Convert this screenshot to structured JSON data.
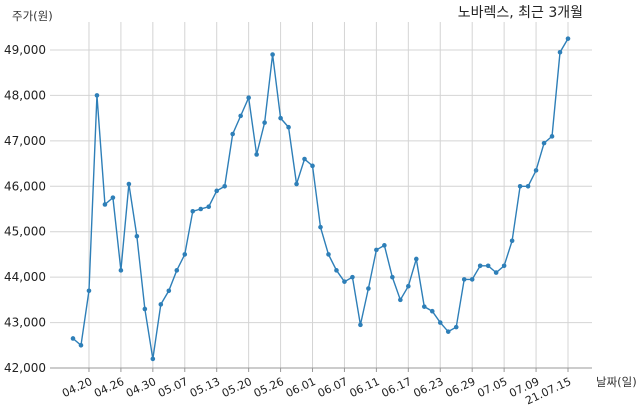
{
  "chart_data": {
    "type": "line",
    "title": "노바렉스, 최근 3개월",
    "ylabel": "주가(원)",
    "xlabel": "날짜(일)",
    "ylim": [
      42000,
      49500
    ],
    "yticks": [
      "42,000",
      "43,000",
      "44,000",
      "45,000",
      "46,000",
      "47,000",
      "48,000",
      "49,000"
    ],
    "ytick_values": [
      42000,
      43000,
      44000,
      45000,
      46000,
      47000,
      48000,
      49000
    ],
    "xtick_labels": [
      "04.20",
      "04.26",
      "04.30",
      "05.07",
      "05.13",
      "05.20",
      "05.26",
      "06.01",
      "06.07",
      "06.11",
      "06.17",
      "06.23",
      "06.29",
      "07.05",
      "07.09",
      "21.07.15"
    ],
    "xtick_index": [
      2,
      6,
      10,
      14,
      18,
      22,
      26,
      30,
      34,
      38,
      42,
      46,
      50,
      54,
      58,
      62
    ],
    "grid": true,
    "color": "#2e7fb8",
    "series": [
      {
        "values": [
          42650,
          42500,
          43700,
          48000,
          45600,
          45750,
          44150,
          46050,
          44900,
          43300,
          42200,
          43400,
          43700,
          44150,
          44500,
          45450,
          45500,
          45550,
          45900,
          46000,
          47150,
          47550,
          47950,
          46700,
          47400,
          48900,
          47500,
          47300,
          46050,
          46600,
          46450,
          45100,
          44500,
          44150,
          43900,
          44000,
          42950,
          43750,
          44600,
          44700,
          44000,
          43500,
          43800,
          44400,
          43350,
          43250,
          43000,
          42800,
          42900,
          43950,
          43950,
          44250,
          44250,
          44100,
          44250,
          44800,
          46000,
          46000,
          46350,
          46950,
          47100,
          48950,
          49250
        ]
      }
    ]
  }
}
